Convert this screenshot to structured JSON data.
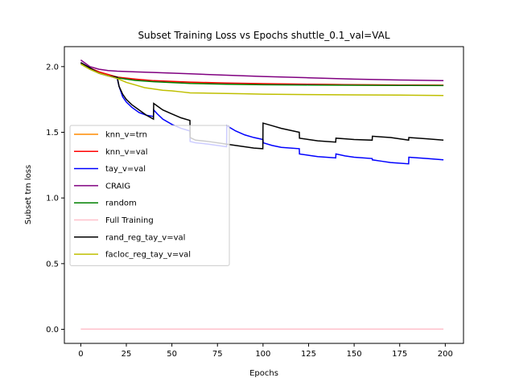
{
  "chart_data": {
    "type": "line",
    "title": "Subset Training Loss vs Epochs shuttle_0.1_val=VAL",
    "xlabel": "Epochs",
    "ylabel": "Subset trn loss",
    "xlim": [
      -9,
      210
    ],
    "ylim": [
      -0.107,
      2.152
    ],
    "xticks": [
      0,
      25,
      50,
      75,
      100,
      125,
      150,
      175,
      200
    ],
    "yticks": [
      0.0,
      0.5,
      1.0,
      1.5,
      2.0
    ],
    "ytick_labels": [
      "0.0",
      "0.5",
      "1.0",
      "1.5",
      "2.0"
    ],
    "grid": false,
    "legend_position": "center-left",
    "series": [
      {
        "name": "knn_v=trn",
        "color": "#ff8c00",
        "x": [
          0,
          5,
          10,
          15,
          20,
          30,
          40,
          60,
          80,
          100,
          125,
          150,
          175,
          199
        ],
        "y": [
          2.02,
          1.98,
          1.95,
          1.93,
          1.915,
          1.9,
          1.89,
          1.88,
          1.873,
          1.869,
          1.865,
          1.862,
          1.86,
          1.858
        ]
      },
      {
        "name": "knn_v=val",
        "color": "#ff0000",
        "x": [
          0,
          5,
          10,
          15,
          20,
          30,
          40,
          60,
          80,
          100,
          125,
          150,
          175,
          199
        ],
        "y": [
          2.03,
          1.99,
          1.96,
          1.94,
          1.92,
          1.905,
          1.893,
          1.882,
          1.875,
          1.87,
          1.866,
          1.862,
          1.86,
          1.858
        ]
      },
      {
        "name": "tay_v=val",
        "color": "#0000ff",
        "x": [
          0,
          5,
          10,
          15,
          19.9,
          20,
          21,
          23,
          25,
          28,
          32,
          36,
          39.9,
          40,
          42,
          45,
          50,
          55,
          59.9,
          60,
          63,
          70,
          80,
          80.1,
          85,
          90,
          95,
          100,
          100.1,
          105,
          110,
          119.9,
          120,
          125,
          130,
          139.9,
          140,
          145,
          150,
          159.9,
          160,
          165,
          170,
          179.9,
          180,
          190,
          199
        ],
        "y": [
          2.03,
          1.99,
          1.95,
          1.93,
          1.91,
          1.91,
          1.85,
          1.77,
          1.73,
          1.69,
          1.65,
          1.63,
          1.62,
          1.67,
          1.64,
          1.6,
          1.56,
          1.53,
          1.51,
          1.43,
          1.42,
          1.41,
          1.39,
          1.55,
          1.51,
          1.48,
          1.46,
          1.445,
          1.42,
          1.4,
          1.385,
          1.375,
          1.335,
          1.325,
          1.315,
          1.305,
          1.335,
          1.32,
          1.31,
          1.3,
          1.29,
          1.28,
          1.27,
          1.26,
          1.31,
          1.3,
          1.29
        ]
      },
      {
        "name": "CRAIG",
        "color": "#800080",
        "x": [
          0,
          5,
          10,
          15,
          20,
          30,
          40,
          60,
          80,
          100,
          125,
          150,
          175,
          199
        ],
        "y": [
          2.05,
          2.0,
          1.98,
          1.97,
          1.965,
          1.96,
          1.955,
          1.945,
          1.935,
          1.925,
          1.915,
          1.905,
          1.898,
          1.893
        ]
      },
      {
        "name": "random",
        "color": "#008000",
        "x": [
          0,
          5,
          10,
          15,
          20,
          30,
          40,
          60,
          80,
          100,
          125,
          150,
          175,
          199
        ],
        "y": [
          2.02,
          1.98,
          1.95,
          1.93,
          1.915,
          1.895,
          1.885,
          1.872,
          1.866,
          1.862,
          1.86,
          1.858,
          1.857,
          1.856
        ]
      },
      {
        "name": "Full Training",
        "color": "#ffc0cb",
        "x": [
          0,
          199
        ],
        "y": [
          0.002,
          0.002
        ]
      },
      {
        "name": "rand_reg_tay_v=val",
        "color": "#000000",
        "x": [
          0,
          5,
          10,
          15,
          19.9,
          20,
          21,
          23,
          25,
          28,
          32,
          36,
          39.9,
          40,
          42,
          45,
          50,
          55,
          59.9,
          60,
          63,
          70,
          80,
          85,
          90,
          95,
          99.9,
          100,
          105,
          110,
          119.9,
          120,
          125,
          130,
          139.9,
          140,
          145,
          150,
          159.9,
          160,
          165,
          170,
          179.9,
          180,
          190,
          199
        ],
        "y": [
          2.03,
          1.99,
          1.95,
          1.93,
          1.92,
          1.92,
          1.85,
          1.79,
          1.75,
          1.71,
          1.67,
          1.63,
          1.6,
          1.72,
          1.7,
          1.67,
          1.64,
          1.61,
          1.59,
          1.46,
          1.44,
          1.43,
          1.41,
          1.4,
          1.39,
          1.38,
          1.375,
          1.57,
          1.55,
          1.53,
          1.5,
          1.455,
          1.445,
          1.435,
          1.425,
          1.455,
          1.45,
          1.445,
          1.44,
          1.47,
          1.465,
          1.46,
          1.44,
          1.46,
          1.45,
          1.44
        ]
      },
      {
        "name": "facloc_reg_tay_v=val",
        "color": "#bfbf00",
        "x": [
          0,
          5,
          10,
          15,
          20,
          25,
          30,
          35,
          40,
          45,
          50,
          55,
          60,
          70,
          80,
          90,
          100,
          125,
          150,
          175,
          199
        ],
        "y": [
          2.02,
          1.98,
          1.95,
          1.93,
          1.91,
          1.88,
          1.86,
          1.84,
          1.83,
          1.82,
          1.815,
          1.808,
          1.8,
          1.798,
          1.795,
          1.793,
          1.79,
          1.787,
          1.785,
          1.783,
          1.78
        ]
      }
    ]
  }
}
